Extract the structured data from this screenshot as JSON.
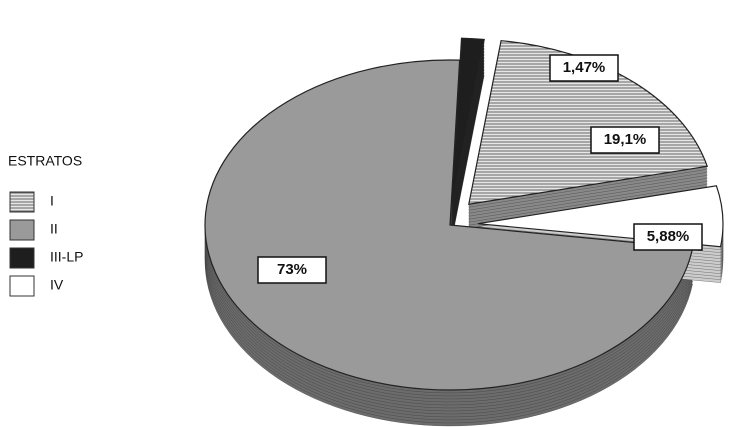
{
  "chart_data": {
    "type": "pie",
    "legend_title": "ESTRATOS",
    "categories": [
      "I",
      "II",
      "III-LP",
      "IV"
    ],
    "values": [
      19.1,
      73,
      1.47,
      5.88
    ],
    "value_labels": [
      "19,1%",
      "73%",
      "1,47%",
      "5,88%"
    ],
    "colors": [
      "#c4c4c4",
      "#9a9a9a",
      "#1e1e1e",
      "#ffffff"
    ],
    "legend": "left"
  }
}
